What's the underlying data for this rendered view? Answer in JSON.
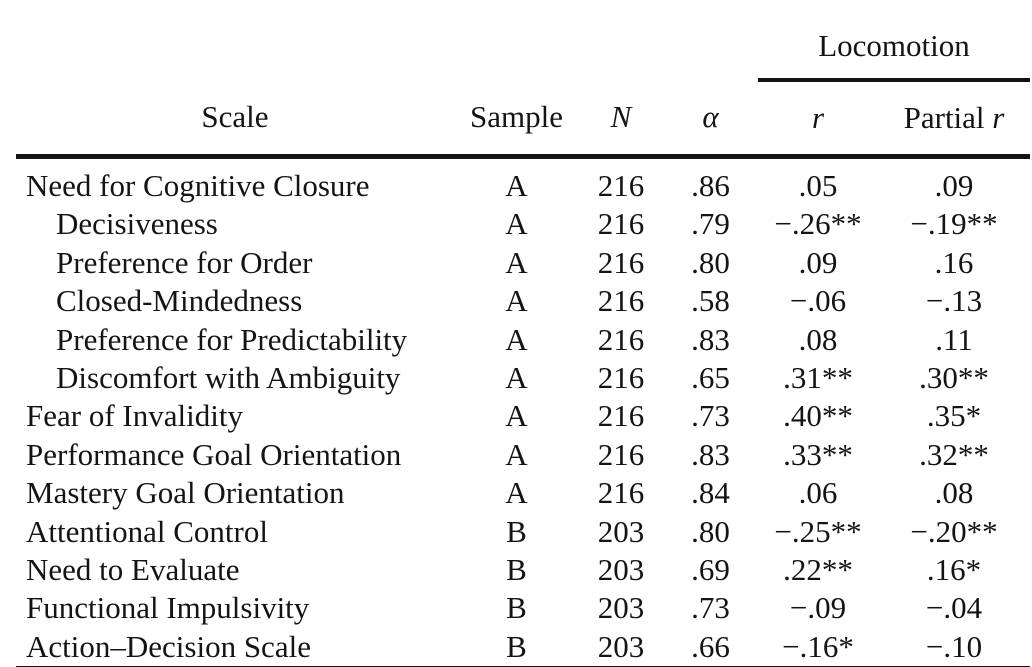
{
  "table": {
    "spanner": {
      "label": "Locomotion"
    },
    "header": {
      "scale": "Scale",
      "sample": "Sample",
      "n": "N",
      "alpha": "α",
      "r": "r",
      "partial_prefix": "Partial",
      "partial_italic_char": "r"
    },
    "rows": [
      {
        "scale": "Need for Cognitive Closure",
        "indent": false,
        "sample": "A",
        "n": "216",
        "alpha": ".86",
        "r": ".05",
        "partial_r": ".09"
      },
      {
        "scale": "Decisiveness",
        "indent": true,
        "sample": "A",
        "n": "216",
        "alpha": ".79",
        "r": "−.26**",
        "partial_r": "−.19**"
      },
      {
        "scale": "Preference for Order",
        "indent": true,
        "sample": "A",
        "n": "216",
        "alpha": ".80",
        "r": ".09",
        "partial_r": ".16"
      },
      {
        "scale": "Closed-Mindedness",
        "indent": true,
        "sample": "A",
        "n": "216",
        "alpha": ".58",
        "r": "−.06",
        "partial_r": "−.13"
      },
      {
        "scale": "Preference for Predictability",
        "indent": true,
        "sample": "A",
        "n": "216",
        "alpha": ".83",
        "r": ".08",
        "partial_r": ".11"
      },
      {
        "scale": "Discomfort with Ambiguity",
        "indent": true,
        "sample": "A",
        "n": "216",
        "alpha": ".65",
        "r": ".31**",
        "partial_r": ".30**"
      },
      {
        "scale": "Fear of Invalidity",
        "indent": false,
        "sample": "A",
        "n": "216",
        "alpha": ".73",
        "r": ".40**",
        "partial_r": ".35*"
      },
      {
        "scale": "Performance Goal Orientation",
        "indent": false,
        "sample": "A",
        "n": "216",
        "alpha": ".83",
        "r": ".33**",
        "partial_r": ".32**"
      },
      {
        "scale": "Mastery Goal Orientation",
        "indent": false,
        "sample": "A",
        "n": "216",
        "alpha": ".84",
        "r": ".06",
        "partial_r": ".08"
      },
      {
        "scale": "Attentional Control",
        "indent": false,
        "sample": "B",
        "n": "203",
        "alpha": ".80",
        "r": "−.25**",
        "partial_r": "−.20**"
      },
      {
        "scale": "Need to Evaluate",
        "indent": false,
        "sample": "B",
        "n": "203",
        "alpha": ".69",
        "r": ".22**",
        "partial_r": ".16*"
      },
      {
        "scale": "Functional Impulsivity",
        "indent": false,
        "sample": "B",
        "n": "203",
        "alpha": ".73",
        "r": "−.09",
        "partial_r": "−.04"
      },
      {
        "scale": "Action–Decision Scale",
        "indent": false,
        "sample": "B",
        "n": "203",
        "alpha": ".66",
        "r": "−.16*",
        "partial_r": "−.10"
      }
    ]
  },
  "colors": {
    "text": "#141414",
    "background": "#ffffff",
    "rule": "#141414"
  }
}
